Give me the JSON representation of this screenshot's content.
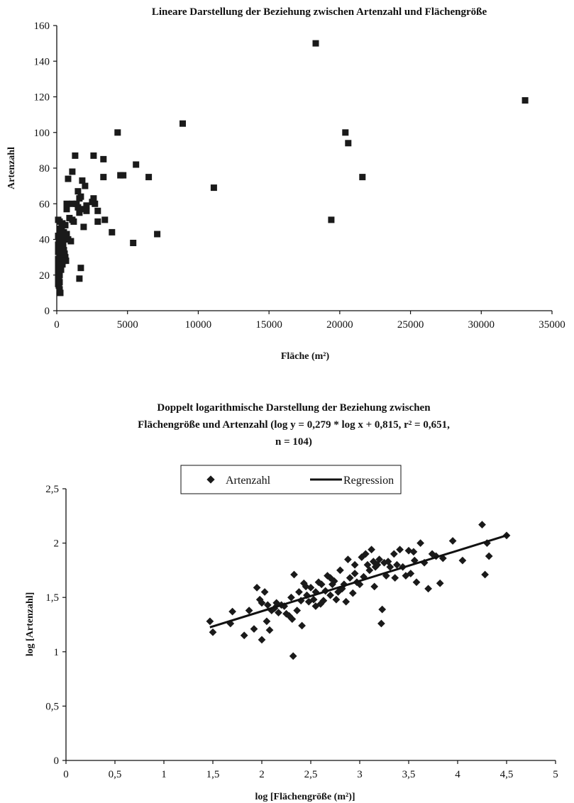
{
  "chart_data": [
    {
      "type": "scatter",
      "title": "Lineare Darstellung der Beziehung zwischen Artenzahl und Flächengröße",
      "xlabel": "Fläche (m²)",
      "ylabel": "Artenzahl",
      "xlim": [
        0,
        35000
      ],
      "ylim": [
        0,
        160
      ],
      "x_ticks": [
        "0",
        "5000",
        "10000",
        "15000",
        "20000",
        "25000",
        "30000",
        "35000"
      ],
      "y_ticks": [
        "0",
        "20",
        "40",
        "60",
        "80",
        "100",
        "120",
        "140",
        "160"
      ],
      "grid": false,
      "marker": "square",
      "color": "#1a1a1a",
      "series": [
        {
          "points": [
            [
              18300,
              150
            ],
            [
              33100,
              118
            ],
            [
              8900,
              105
            ],
            [
              20400,
              100
            ],
            [
              4300,
              100
            ],
            [
              20600,
              94
            ],
            [
              1300,
              87
            ],
            [
              2600,
              87
            ],
            [
              3300,
              85
            ],
            [
              5600,
              82
            ],
            [
              1100,
              78
            ],
            [
              4500,
              76
            ],
            [
              4700,
              76
            ],
            [
              3300,
              75
            ],
            [
              6500,
              75
            ],
            [
              800,
              74
            ],
            [
              21600,
              75
            ],
            [
              1800,
              73
            ],
            [
              2000,
              70
            ],
            [
              11100,
              69
            ],
            [
              1500,
              67
            ],
            [
              1700,
              64
            ],
            [
              1600,
              63
            ],
            [
              2600,
              63
            ],
            [
              2500,
              61
            ],
            [
              2700,
              60
            ],
            [
              1400,
              60
            ],
            [
              700,
              60
            ],
            [
              1100,
              60
            ],
            [
              2100,
              59
            ],
            [
              700,
              57
            ],
            [
              2900,
              56
            ],
            [
              1500,
              58
            ],
            [
              1900,
              57
            ],
            [
              2100,
              56
            ],
            [
              1600,
              55
            ],
            [
              3400,
              51
            ],
            [
              2900,
              50
            ],
            [
              1100,
              51
            ],
            [
              1200,
              50
            ],
            [
              900,
              52
            ],
            [
              19400,
              51
            ],
            [
              1900,
              47
            ],
            [
              3900,
              44
            ],
            [
              7100,
              43
            ],
            [
              5400,
              38
            ],
            [
              1700,
              24
            ],
            [
              1600,
              18
            ],
            [
              100,
              51
            ],
            [
              200,
              50
            ],
            [
              400,
              49
            ],
            [
              600,
              48
            ],
            [
              200,
              46
            ],
            [
              300,
              45
            ],
            [
              500,
              44
            ],
            [
              700,
              43
            ],
            [
              400,
              43
            ],
            [
              100,
              42
            ],
            [
              300,
              41
            ],
            [
              600,
              40
            ],
            [
              200,
              39
            ],
            [
              400,
              38
            ],
            [
              800,
              40
            ],
            [
              1000,
              39
            ],
            [
              100,
              37
            ],
            [
              200,
              36
            ],
            [
              300,
              35
            ],
            [
              500,
              34
            ],
            [
              100,
              33
            ],
            [
              200,
              32
            ],
            [
              400,
              31
            ],
            [
              600,
              30
            ],
            [
              100,
              29
            ],
            [
              300,
              29
            ],
            [
              500,
              28
            ],
            [
              200,
              27
            ],
            [
              100,
              26
            ],
            [
              400,
              26
            ],
            [
              200,
              25
            ],
            [
              100,
              24
            ],
            [
              300,
              23
            ],
            [
              200,
              22
            ],
            [
              100,
              21
            ],
            [
              200,
              20
            ],
            [
              100,
              19
            ],
            [
              150,
              18
            ],
            [
              100,
              17
            ],
            [
              200,
              16
            ],
            [
              100,
              15
            ],
            [
              150,
              14
            ],
            [
              200,
              12
            ],
            [
              250,
              10
            ],
            [
              100,
              35
            ],
            [
              150,
              38
            ],
            [
              300,
              33
            ],
            [
              250,
              44
            ],
            [
              350,
              47
            ],
            [
              450,
              37
            ],
            [
              550,
              32
            ],
            [
              650,
              28
            ]
          ]
        }
      ]
    },
    {
      "type": "scatter",
      "title": "Doppelt logarithmische Darstellung der Beziehung zwischen Flächengröße und Artenzahl (log y = 0,279 * log x + 0,815, r² = 0,651, n = 104)",
      "title_lines": [
        "Doppelt logarithmische Darstellung der Beziehung zwischen",
        "Flächengröße und Artenzahl (log y = 0,279 * log x + 0,815, r² = 0,651,",
        "n = 104)"
      ],
      "xlabel": "log [Flächengröße (m²)]",
      "ylabel": "log [Artenzahl]",
      "xlim": [
        0,
        5
      ],
      "ylim": [
        0,
        2.5
      ],
      "x_ticks": [
        "0",
        "0,5",
        "1",
        "1,5",
        "2",
        "2,5",
        "3",
        "3,5",
        "4",
        "4,5",
        "5"
      ],
      "y_ticks": [
        "0",
        "0,5",
        "1",
        "1,5",
        "2",
        "2,5"
      ],
      "grid": false,
      "legend": {
        "placement": "top-center",
        "entries": [
          "Artenzahl",
          "Regression"
        ]
      },
      "regression": {
        "name": "Regression",
        "slope": 0.279,
        "intercept": 0.815,
        "x_range": [
          1.47,
          4.52
        ]
      },
      "color": "#1a1a1a",
      "series": [
        {
          "name": "Artenzahl",
          "marker": "diamond",
          "points": [
            [
              1.47,
              1.28
            ],
            [
              1.5,
              1.18
            ],
            [
              1.68,
              1.26
            ],
            [
              1.7,
              1.37
            ],
            [
              1.82,
              1.15
            ],
            [
              1.87,
              1.38
            ],
            [
              1.92,
              1.21
            ],
            [
              1.95,
              1.59
            ],
            [
              1.98,
              1.48
            ],
            [
              2.0,
              1.11
            ],
            [
              2.03,
              1.55
            ],
            [
              2.05,
              1.28
            ],
            [
              2.06,
              1.43
            ],
            [
              2.08,
              1.2
            ],
            [
              2.1,
              1.38
            ],
            [
              2.13,
              1.4
            ],
            [
              2.17,
              1.36
            ],
            [
              2.2,
              1.43
            ],
            [
              2.23,
              1.42
            ],
            [
              2.25,
              1.35
            ],
            [
              2.28,
              1.33
            ],
            [
              2.3,
              1.5
            ],
            [
              2.31,
              1.3
            ],
            [
              2.32,
              0.96
            ],
            [
              2.33,
              1.71
            ],
            [
              2.36,
              1.38
            ],
            [
              2.38,
              1.55
            ],
            [
              2.4,
              1.47
            ],
            [
              2.41,
              1.24
            ],
            [
              2.43,
              1.63
            ],
            [
              2.46,
              1.52
            ],
            [
              2.48,
              1.46
            ],
            [
              2.5,
              1.59
            ],
            [
              2.53,
              1.48
            ],
            [
              2.55,
              1.55
            ],
            [
              2.58,
              1.64
            ],
            [
              2.6,
              1.44
            ],
            [
              2.61,
              1.62
            ],
            [
              2.63,
              1.47
            ],
            [
              2.65,
              1.56
            ],
            [
              2.67,
              1.7
            ],
            [
              2.7,
              1.52
            ],
            [
              2.72,
              1.62
            ],
            [
              2.74,
              1.65
            ],
            [
              2.76,
              1.48
            ],
            [
              2.78,
              1.55
            ],
            [
              2.8,
              1.75
            ],
            [
              2.82,
              1.58
            ],
            [
              2.84,
              1.62
            ],
            [
              2.86,
              1.46
            ],
            [
              2.88,
              1.85
            ],
            [
              2.9,
              1.68
            ],
            [
              2.93,
              1.54
            ],
            [
              2.95,
              1.72
            ],
            [
              2.97,
              1.64
            ],
            [
              3.0,
              1.62
            ],
            [
              3.02,
              1.87
            ],
            [
              3.04,
              1.69
            ],
            [
              3.06,
              1.9
            ],
            [
              3.08,
              1.8
            ],
            [
              3.1,
              1.75
            ],
            [
              3.12,
              1.94
            ],
            [
              3.14,
              1.83
            ],
            [
              3.16,
              1.78
            ],
            [
              3.18,
              1.8
            ],
            [
              3.2,
              1.85
            ],
            [
              3.22,
              1.26
            ],
            [
              3.23,
              1.39
            ],
            [
              3.25,
              1.82
            ],
            [
              3.27,
              1.7
            ],
            [
              3.29,
              1.83
            ],
            [
              3.31,
              1.78
            ],
            [
              3.36,
              1.68
            ],
            [
              3.38,
              1.8
            ],
            [
              3.41,
              1.94
            ],
            [
              3.44,
              1.78
            ],
            [
              3.47,
              1.7
            ],
            [
              3.5,
              1.93
            ],
            [
              3.52,
              1.72
            ],
            [
              3.56,
              1.84
            ],
            [
              3.58,
              1.64
            ],
            [
              3.62,
              2.0
            ],
            [
              3.66,
              1.82
            ],
            [
              3.7,
              1.58
            ],
            [
              3.74,
              1.9
            ],
            [
              3.78,
              1.88
            ],
            [
              3.82,
              1.63
            ],
            [
              3.95,
              2.02
            ],
            [
              4.05,
              1.84
            ],
            [
              4.25,
              2.17
            ],
            [
              4.28,
              1.71
            ],
            [
              4.3,
              2.0
            ],
            [
              4.32,
              1.88
            ],
            [
              4.5,
              2.07
            ],
            [
              2.15,
              1.45
            ],
            [
              2.45,
              1.6
            ],
            [
              2.95,
              1.8
            ],
            [
              3.35,
              1.9
            ],
            [
              3.55,
              1.92
            ],
            [
              2.7,
              1.68
            ],
            [
              3.15,
              1.6
            ],
            [
              2.0,
              1.45
            ],
            [
              3.85,
              1.86
            ],
            [
              2.55,
              1.42
            ]
          ]
        }
      ]
    }
  ]
}
